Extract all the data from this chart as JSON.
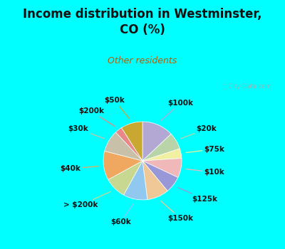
{
  "title": "Income distribution in Westminster,\nCO (%)",
  "subtitle": "Other residents",
  "title_color": "#111111",
  "subtitle_color": "#b85c00",
  "background_color": "#00ffff",
  "chart_bg_start": "#e8f5ee",
  "labels": [
    "$100k",
    "$20k",
    "$75k",
    "$10k",
    "$125k",
    "$150k",
    "$60k",
    "> $200k",
    "$40k",
    "$30k",
    "$200k",
    "$50k"
  ],
  "values": [
    13,
    7,
    4,
    8,
    7,
    9,
    10,
    9,
    12,
    9,
    3,
    9
  ],
  "colors": [
    "#b3a8d4",
    "#b8d4a8",
    "#f0f0a0",
    "#f0b8b8",
    "#9898d8",
    "#f0c898",
    "#90c8f0",
    "#c8d890",
    "#f0a860",
    "#c8c0a8",
    "#e88888",
    "#c8a830"
  ],
  "label_fontsize": 7.5,
  "label_fontweight": "bold"
}
